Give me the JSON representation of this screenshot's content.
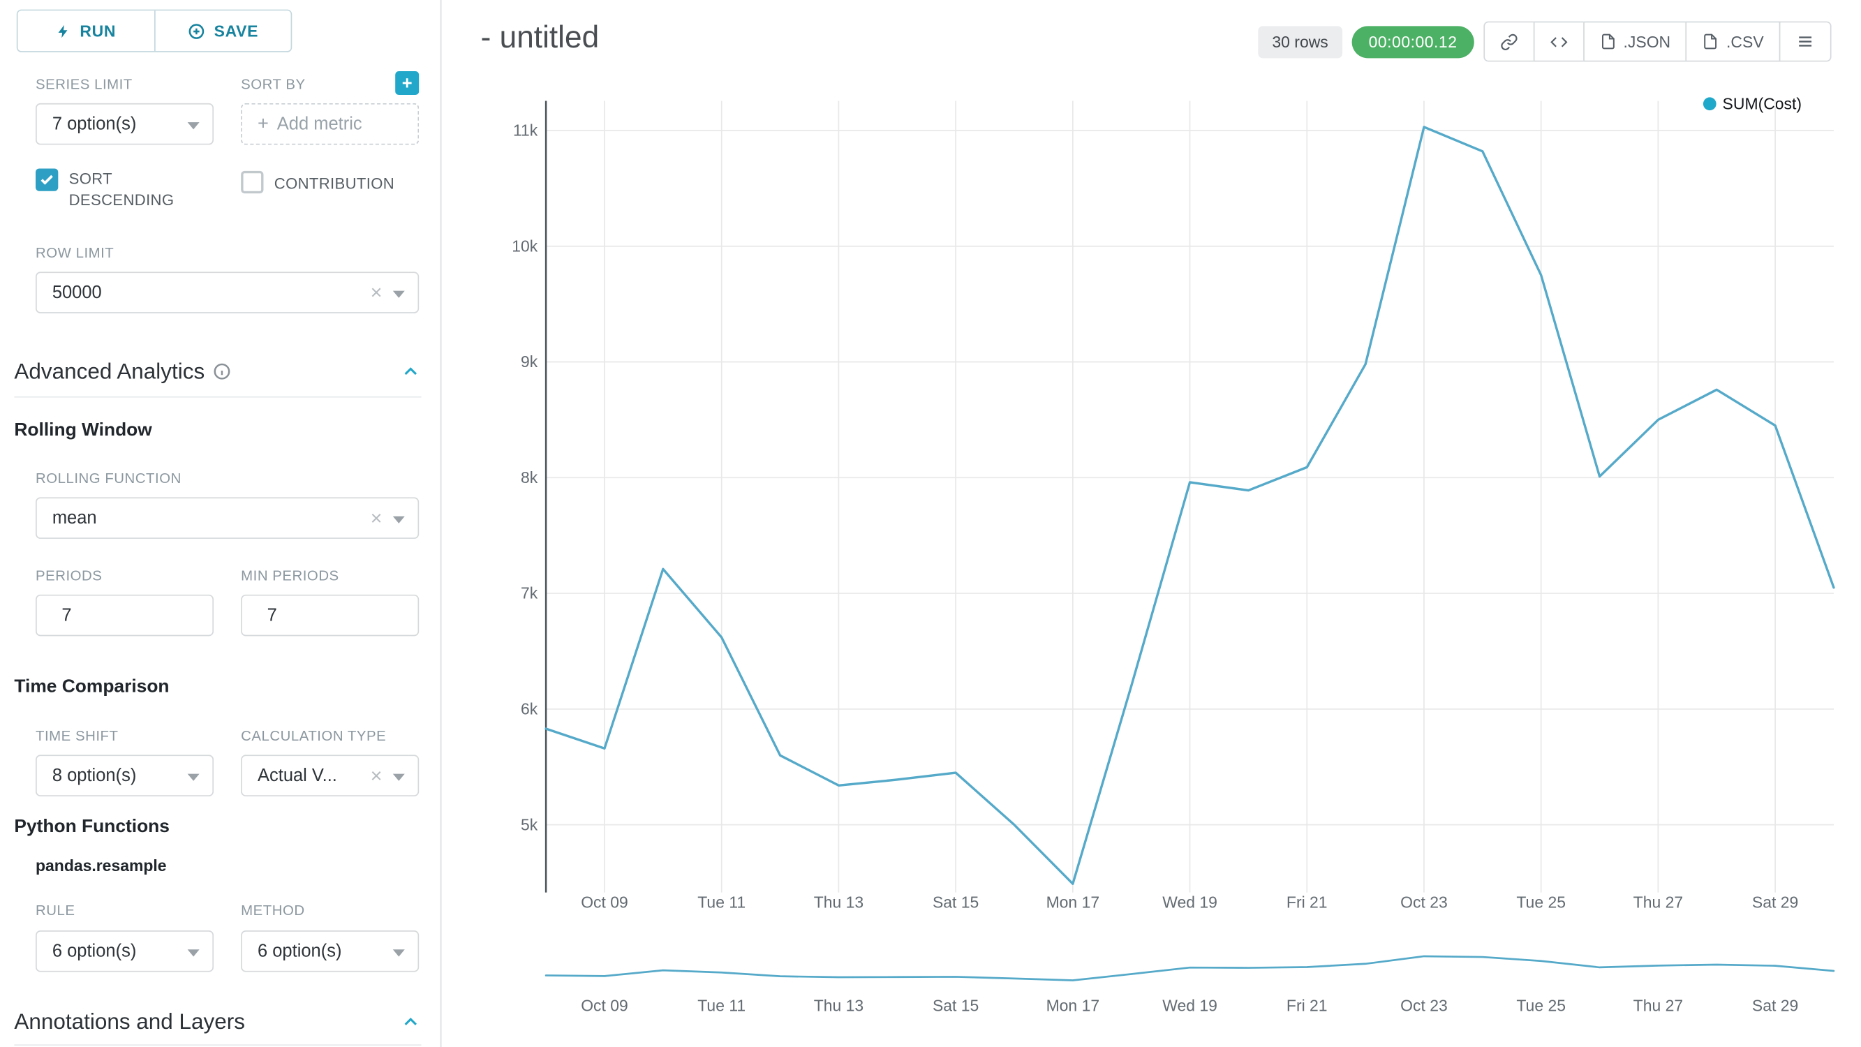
{
  "colors": {
    "accent": "#20a7c9",
    "timer_green": "#4cb164",
    "line": "#55a9c9",
    "legend_dot": "#1fa8c9",
    "grid": "#e8e8e8"
  },
  "left_panel": {
    "run_button": "RUN",
    "save_button": "SAVE",
    "series_limit_label": "SERIES LIMIT",
    "series_limit_value": "7 option(s)",
    "sort_by_label": "SORT BY",
    "sort_by_placeholder": "Add metric",
    "sort_descending_label": "SORT DESCENDING",
    "contribution_label": "CONTRIBUTION",
    "row_limit_label": "ROW LIMIT",
    "row_limit_value": "50000",
    "advanced_analytics_title": "Advanced Analytics",
    "rolling_window_title": "Rolling Window",
    "rolling_function_label": "ROLLING FUNCTION",
    "rolling_function_value": "mean",
    "periods_label": "PERIODS",
    "periods_value": "7",
    "min_periods_label": "MIN PERIODS",
    "min_periods_value": "7",
    "time_comparison_title": "Time Comparison",
    "time_shift_label": "TIME SHIFT",
    "time_shift_value": "8 option(s)",
    "calculation_type_label": "CALCULATION TYPE",
    "calculation_type_value": "Actual V...",
    "python_functions_title": "Python Functions",
    "pandas_resample_label": "pandas.resample",
    "rule_label": "RULE",
    "rule_value": "6 option(s)",
    "method_label": "METHOD",
    "method_value": "6 option(s)",
    "annotations_title": "Annotations and Layers"
  },
  "header": {
    "title": "- untitled",
    "rows_badge": "30 rows",
    "timer": "00:00:00.12",
    "json_button": ".JSON",
    "csv_button": ".CSV"
  },
  "chart_data": {
    "type": "line",
    "legend_label": "SUM(Cost)",
    "x": [
      "Oct 08",
      "Oct 09",
      "Oct 10",
      "Oct 11",
      "Oct 12",
      "Oct 13",
      "Oct 14",
      "Oct 15",
      "Oct 16",
      "Oct 17",
      "Oct 18",
      "Oct 19",
      "Oct 20",
      "Oct 21",
      "Oct 22",
      "Oct 23",
      "Oct 24",
      "Oct 25",
      "Oct 26",
      "Oct 27",
      "Oct 28",
      "Oct 29",
      "Oct 30"
    ],
    "series": [
      {
        "name": "SUM(Cost)",
        "values": [
          5830,
          5660,
          7210,
          6620,
          5600,
          5340,
          5390,
          5450,
          5000,
          4490,
          6200,
          7960,
          7890,
          8090,
          8980,
          11030,
          10820,
          9750,
          8010,
          8500,
          8760,
          8450,
          7050
        ]
      }
    ],
    "x_tick_indices": [
      1,
      3,
      5,
      7,
      9,
      11,
      13,
      15,
      17,
      19,
      21
    ],
    "x_tick_labels": [
      "Oct 09",
      "Tue 11",
      "Thu 13",
      "Sat 15",
      "Mon 17",
      "Wed 19",
      "Fri 21",
      "Oct 23",
      "Tue 25",
      "Thu 27",
      "Sat 29"
    ],
    "y_ticks": [
      5000,
      6000,
      7000,
      8000,
      9000,
      10000,
      11000
    ],
    "y_tick_labels": [
      "5k",
      "6k",
      "7k",
      "8k",
      "9k",
      "10k",
      "11k"
    ],
    "ylim": [
      4415,
      11256
    ],
    "mini_ylim": [
      0,
      14800
    ],
    "grid_on": true,
    "legend_position": "top-right",
    "line_color": "#55a9c9",
    "grid_color": "#e8e8e8"
  }
}
